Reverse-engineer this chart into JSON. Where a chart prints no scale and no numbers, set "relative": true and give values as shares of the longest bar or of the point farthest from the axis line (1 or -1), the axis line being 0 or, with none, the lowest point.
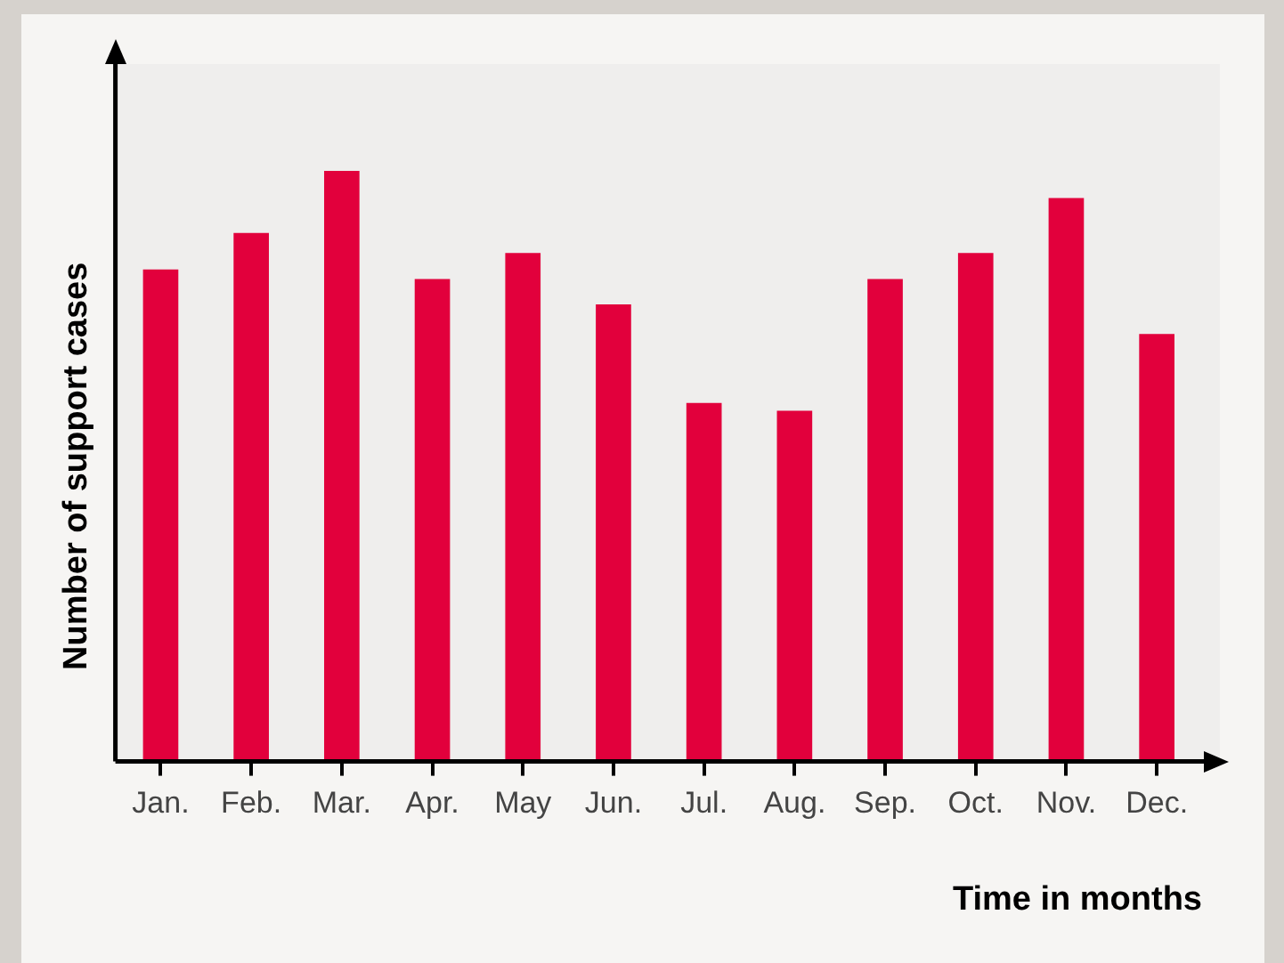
{
  "chart_data": {
    "type": "bar",
    "relative": true,
    "xlabel": "Time in months",
    "ylabel": "Number of support cases",
    "categories": [
      "Jan.",
      "Feb.",
      "Mar.",
      "Apr.",
      "May",
      "Jun.",
      "Jul.",
      "Aug.",
      "Sep.",
      "Oct.",
      "Nov.",
      "Dec."
    ],
    "values": [
      0.833,
      0.895,
      1,
      0.817,
      0.861,
      0.774,
      0.607,
      0.594,
      0.817,
      0.861,
      0.954,
      0.724
    ],
    "color": "#e2003c",
    "grid": false,
    "legend": false
  }
}
